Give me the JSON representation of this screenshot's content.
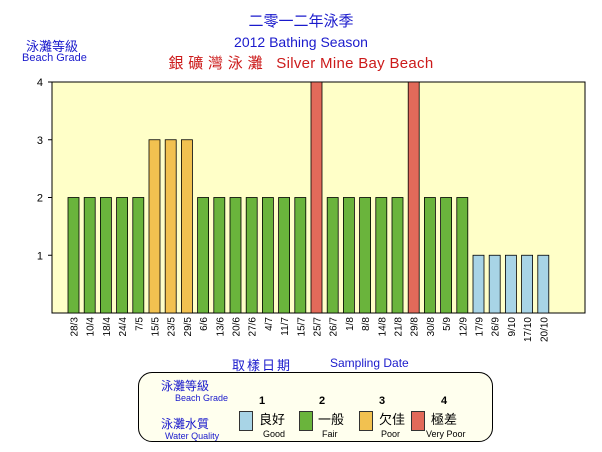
{
  "title": {
    "line1": "二零一二年泳季",
    "line2": "2012 Bathing Season",
    "line3": "銀 礦 灣 泳 灘   Silver Mine Bay Beach"
  },
  "axes": {
    "y_title_zh": "泳灘等級",
    "y_title_en": "Beach Grade",
    "x_title_zh": "取樣日期",
    "x_title_en": "Sampling Date"
  },
  "legend": {
    "grade_zh": "泳灘等級",
    "grade_en": "Beach Grade",
    "quality_zh": "泳灘水質",
    "quality_en": "Water Quality",
    "items": [
      {
        "num": "1",
        "name": "良好",
        "sub": "Good",
        "color": "#a8d4e6"
      },
      {
        "num": "2",
        "name": "一般",
        "sub": "Fair",
        "color": "#6ab43c"
      },
      {
        "num": "3",
        "name": "欠佳",
        "sub": "Poor",
        "color": "#f2c150"
      },
      {
        "num": "4",
        "name": "極差",
        "sub": "Very Poor",
        "color": "#e26a5a"
      }
    ]
  },
  "chart_data": {
    "type": "bar",
    "ylim": [
      0,
      4
    ],
    "yticks": [
      1,
      2,
      3,
      4
    ],
    "categories": [
      "28/3",
      "10/4",
      "18/4",
      "24/4",
      "7/5",
      "15/5",
      "23/5",
      "29/5",
      "6/6",
      "13/6",
      "20/6",
      "27/6",
      "4/7",
      "11/7",
      "15/7",
      "25/7",
      "26/7",
      "1/8",
      "8/8",
      "14/8",
      "21/8",
      "29/8",
      "30/8",
      "5/9",
      "12/9",
      "17/9",
      "26/9",
      "9/10",
      "17/10",
      "20/10"
    ],
    "values": [
      2,
      2,
      2,
      2,
      2,
      3,
      3,
      3,
      2,
      2,
      2,
      2,
      2,
      2,
      2,
      4,
      2,
      2,
      2,
      2,
      2,
      4,
      2,
      2,
      2,
      1,
      1,
      1,
      1,
      1
    ],
    "grade_colors": {
      "1": "#a8d4e6",
      "2": "#6ab43c",
      "3": "#f2c150",
      "4": "#e26a5a"
    },
    "plot_background": "#ffffc8"
  }
}
